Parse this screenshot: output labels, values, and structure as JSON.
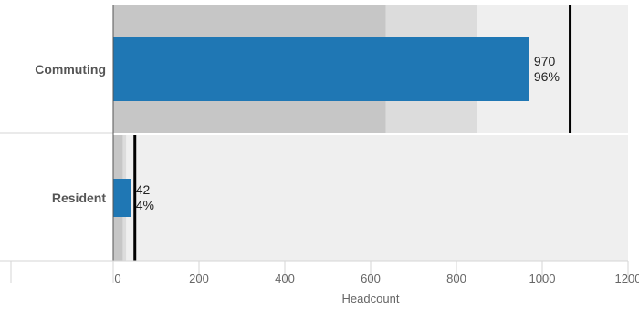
{
  "chart_data": {
    "type": "bar",
    "orientation": "horizontal",
    "subtype": "bullet",
    "title": "",
    "xlabel": "Headcount",
    "ylabel": "",
    "xlim": [
      0,
      1200
    ],
    "x_ticks": [
      0,
      200,
      400,
      600,
      800,
      1000,
      1200
    ],
    "categories": [
      "Commuting",
      "Resident"
    ],
    "values": [
      970,
      42
    ],
    "value_labels": [
      "970",
      "42"
    ],
    "percent_labels": [
      "96%",
      "4%"
    ],
    "targets": [
      1065,
      42
    ],
    "ranges": [
      [
        635,
        848,
        1200
      ],
      [
        22,
        30,
        1200
      ]
    ],
    "grid": false,
    "legend": "none",
    "colors": {
      "bar": "#1f77b4",
      "range_dark": "#c6c6c6",
      "range_mid": "#dcdcdc",
      "range_light": "#efefef",
      "target": "#000000",
      "divider": "#d6d6d6",
      "axis": "#555555"
    }
  }
}
